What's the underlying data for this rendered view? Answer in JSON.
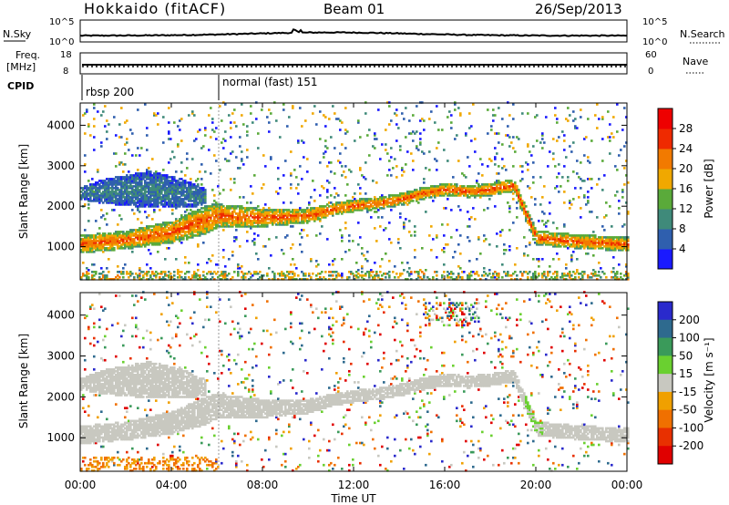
{
  "header": {
    "title": "Hokkaido (fitACF)",
    "beam": "Beam 01",
    "date": "26/Sep/2013"
  },
  "time_axis": {
    "label": "Time UT",
    "range_hours": [
      0,
      24
    ],
    "ticks": [
      {
        "h": 0,
        "label": "00:00"
      },
      {
        "h": 4,
        "label": "04:00"
      },
      {
        "h": 8,
        "label": "08:00"
      },
      {
        "h": 12,
        "label": "12:00"
      },
      {
        "h": 16,
        "label": "16:00"
      },
      {
        "h": 20,
        "label": "20:00"
      },
      {
        "h": 24,
        "label": "00:00"
      }
    ]
  },
  "nsky_panel": {
    "left_label": "N.Sky",
    "right_label": "N.Search",
    "left_ticks": [
      "10^5",
      "10^0"
    ],
    "right_ticks": [
      "10^5",
      "10^0"
    ]
  },
  "freq_panel": {
    "left_label_1": "Freq.",
    "left_label_2": "[MHz]",
    "left_ticks": [
      "18",
      "8"
    ],
    "right_label": "Nave",
    "right_ticks": [
      "60",
      "0"
    ]
  },
  "cpid": {
    "label": "CPID",
    "segments": [
      {
        "start_h": 0,
        "label": "rbsp 200"
      },
      {
        "start_h": 6,
        "label": "normal (fast) 151"
      }
    ]
  },
  "power_panel": {
    "ylabel": "Slant Range [km]",
    "yticks": [
      "1000",
      "2000",
      "3000",
      "4000"
    ],
    "yrange_km": [
      180,
      4550
    ],
    "colorbar_label": "Power [dB]",
    "colorbar_ticks": [
      "4",
      "8",
      "12",
      "16",
      "20",
      "24",
      "28"
    ],
    "colorbar_range": [
      0,
      32
    ],
    "colors": [
      "#1a1aff",
      "#2f5fae",
      "#3f8a7a",
      "#5aaa3a",
      "#f0a800",
      "#f27a00",
      "#ef2a00",
      "#ee0000"
    ]
  },
  "velocity_panel": {
    "ylabel": "Slant Range [km]",
    "yticks": [
      "1000",
      "2000",
      "3000",
      "4000"
    ],
    "yrange_km": [
      180,
      4550
    ],
    "colorbar_label": "Velocity [m s⁻¹]",
    "colorbar_ticks": [
      "200",
      "100",
      "50",
      "15",
      "-15",
      "-50",
      "-100",
      "-200"
    ],
    "colors": [
      "#2a2acc",
      "#2e6a8e",
      "#3a9a5a",
      "#6ad030",
      "#c8c8c0",
      "#f0a000",
      "#f07000",
      "#e83000",
      "#e00000"
    ],
    "ground_scatter_color": "#c8c8c0"
  },
  "chart_data": {
    "type": "heatmap",
    "title": "Hokkaido (fitACF)",
    "xlabel": "Time UT",
    "ylabel": "Slant Range [km]",
    "x_range_hours": [
      0,
      24
    ],
    "y_range_km": [
      180,
      4550
    ],
    "echo_bands": [
      {
        "name": "main",
        "t_h": [
          0,
          2,
          4,
          5.5,
          6,
          8,
          10,
          11,
          12,
          13,
          14,
          15,
          16,
          17,
          18,
          19,
          20,
          22,
          24
        ],
        "center_km": [
          1050,
          1150,
          1350,
          1650,
          1750,
          1700,
          1750,
          1900,
          2000,
          2050,
          2150,
          2300,
          2400,
          2350,
          2400,
          2500,
          1200,
          1100,
          1050
        ],
        "width_km": [
          450,
          450,
          550,
          700,
          600,
          450,
          350,
          300,
          300,
          300,
          300,
          300,
          300,
          300,
          300,
          300,
          350,
          350,
          350
        ],
        "power_db": 24
      },
      {
        "name": "upper",
        "t_h": [
          0,
          1,
          3,
          4.5,
          5.5
        ],
        "center_km": [
          2300,
          2350,
          2400,
          2300,
          2200
        ],
        "width_km": [
          300,
          600,
          900,
          700,
          400
        ],
        "power_db": 9
      }
    ]
  }
}
